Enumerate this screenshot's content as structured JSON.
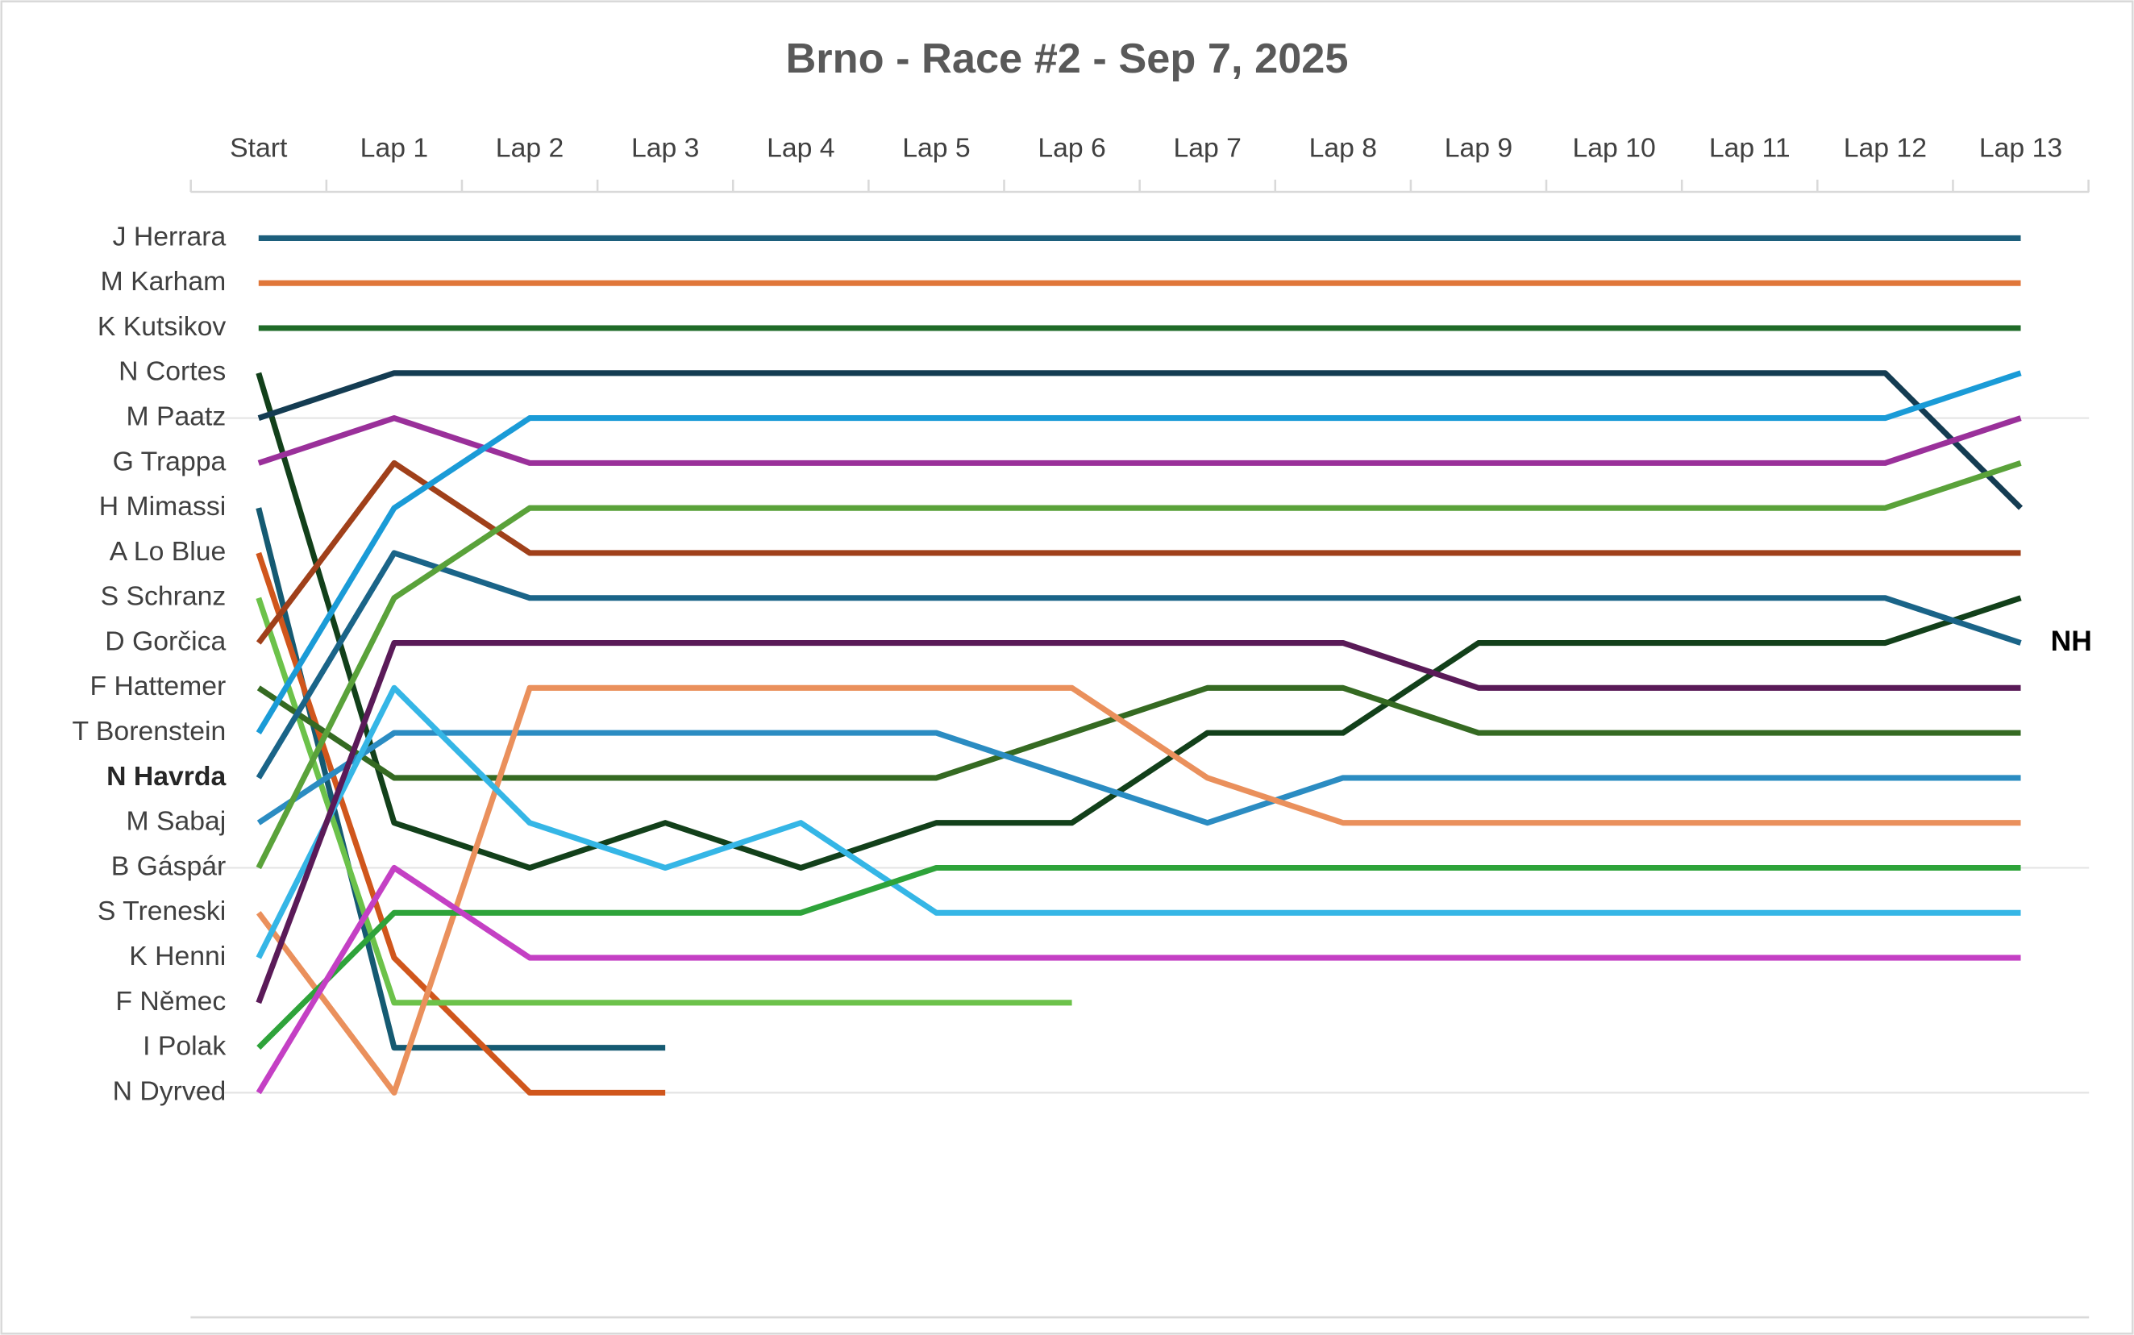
{
  "chart_data": {
    "type": "bump",
    "title": "Brno - Race #2 - Sep 7, 2025",
    "categories": [
      "Start",
      "Lap 1",
      "Lap 2",
      "Lap 3",
      "Lap 4",
      "Lap 5",
      "Lap 6",
      "Lap 7",
      "Lap 8",
      "Lap 9",
      "Lap 10",
      "Lap 11",
      "Lap 12",
      "Lap 13"
    ],
    "y_categories": [
      "J Herrara",
      "M Karham",
      "K Kutsikov",
      "N Cortes",
      "M Paatz",
      "G Trappa",
      "H Mimassi",
      "A Lo Blue",
      "S Schranz",
      "D Gorčica",
      "F Hattemer",
      "T Borenstein",
      "N Havrda",
      "M Sabaj",
      "B Gáspár",
      "S Treneski",
      "K Henni",
      "F Němec",
      "I Polak",
      "N Dyrved"
    ],
    "highlight_row": 13,
    "annotation": {
      "text": "NH",
      "series": 12
    },
    "series": [
      {
        "color": "#1d5f7c",
        "values": [
          1,
          1,
          1,
          1,
          1,
          1,
          1,
          1,
          1,
          1,
          1,
          1,
          1,
          1
        ]
      },
      {
        "color": "#e0773a",
        "values": [
          2,
          2,
          2,
          2,
          2,
          2,
          2,
          2,
          2,
          2,
          2,
          2,
          2,
          2
        ]
      },
      {
        "color": "#1f6b28",
        "values": [
          3,
          3,
          3,
          3,
          3,
          3,
          3,
          3,
          3,
          3,
          3,
          3,
          3,
          3
        ]
      },
      {
        "color": "#12401a",
        "values": [
          4,
          14,
          15,
          14,
          15,
          14,
          14,
          12,
          12,
          10,
          10,
          10,
          10,
          9
        ]
      },
      {
        "color": "#143c52",
        "values": [
          5,
          4,
          4,
          4,
          4,
          4,
          4,
          4,
          4,
          4,
          4,
          4,
          4,
          7
        ]
      },
      {
        "color": "#9a309a",
        "values": [
          6,
          5,
          6,
          6,
          6,
          6,
          6,
          6,
          6,
          6,
          6,
          6,
          6,
          5
        ]
      },
      {
        "color": "#155a72",
        "values": [
          7,
          19,
          19,
          19,
          null,
          null,
          null,
          null,
          null,
          null,
          null,
          null,
          null,
          null
        ]
      },
      {
        "color": "#d0561c",
        "values": [
          8,
          17,
          20,
          20,
          null,
          null,
          null,
          null,
          null,
          null,
          null,
          null,
          null,
          null
        ]
      },
      {
        "color": "#6cc24a",
        "values": [
          9,
          18,
          18,
          18,
          18,
          18,
          18,
          null,
          null,
          null,
          null,
          null,
          null,
          null
        ]
      },
      {
        "color": "#a0401a",
        "values": [
          10,
          6,
          8,
          8,
          8,
          8,
          8,
          8,
          8,
          8,
          8,
          8,
          8,
          8
        ]
      },
      {
        "color": "#356a22",
        "values": [
          11,
          13,
          13,
          13,
          13,
          13,
          12,
          11,
          11,
          12,
          12,
          12,
          12,
          12
        ]
      },
      {
        "color": "#1a9bd7",
        "values": [
          12,
          7,
          5,
          5,
          5,
          5,
          5,
          5,
          5,
          5,
          5,
          5,
          5,
          4
        ]
      },
      {
        "color": "#1a6488",
        "values": [
          13,
          8,
          9,
          9,
          9,
          9,
          9,
          9,
          9,
          9,
          9,
          9,
          9,
          10
        ]
      },
      {
        "color": "#2b8cc2",
        "values": [
          14,
          12,
          12,
          12,
          12,
          12,
          13,
          14,
          13,
          13,
          13,
          13,
          13,
          13
        ]
      },
      {
        "color": "#5aa23a",
        "values": [
          15,
          9,
          7,
          7,
          7,
          7,
          7,
          7,
          7,
          7,
          7,
          7,
          7,
          6
        ]
      },
      {
        "color": "#ea905c",
        "values": [
          16,
          20,
          11,
          11,
          11,
          11,
          11,
          13,
          14,
          14,
          14,
          14,
          14,
          14
        ]
      },
      {
        "color": "#35b6e6",
        "values": [
          17,
          11,
          14,
          15,
          14,
          16,
          16,
          16,
          16,
          16,
          16,
          16,
          16,
          16
        ]
      },
      {
        "color": "#5a1a58",
        "values": [
          18,
          10,
          10,
          10,
          10,
          10,
          10,
          10,
          10,
          11,
          11,
          11,
          11,
          11
        ]
      },
      {
        "color": "#2ea33a",
        "values": [
          19,
          16,
          16,
          16,
          16,
          15,
          15,
          15,
          15,
          15,
          15,
          15,
          15,
          15
        ]
      },
      {
        "color": "#c440c4",
        "values": [
          20,
          15,
          17,
          17,
          17,
          17,
          17,
          17,
          17,
          17,
          17,
          17,
          17,
          17
        ]
      }
    ]
  }
}
